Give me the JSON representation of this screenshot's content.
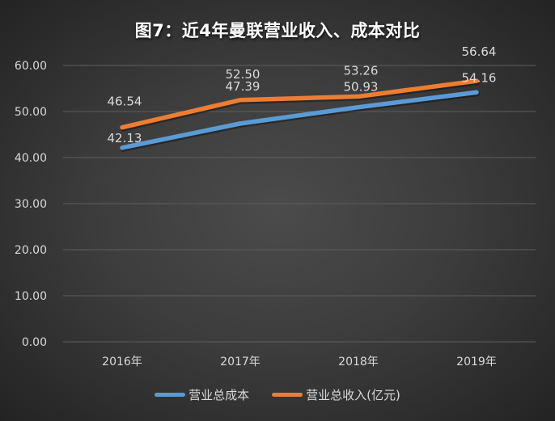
{
  "title": "图7：近4年曼联营业收入、成本对比",
  "chart_data": {
    "type": "line",
    "title": "图7：近4年曼联营业收入、成本对比",
    "categories": [
      "2016年",
      "2017年",
      "2018年",
      "2019年"
    ],
    "series": [
      {
        "name": "营业总成本",
        "color": "#5B9BD5",
        "values": [
          42.13,
          47.39,
          50.93,
          54.16
        ]
      },
      {
        "name": "营业总收入(亿元)",
        "color": "#ED7D31",
        "values": [
          46.54,
          52.5,
          53.26,
          56.64
        ]
      }
    ],
    "xlabel": "",
    "ylabel": "",
    "ylim": [
      0,
      60
    ],
    "yticks": [
      "0.00",
      "10.00",
      "20.00",
      "30.00",
      "40.00",
      "50.00",
      "60.00"
    ],
    "grid": true,
    "legend_position": "bottom",
    "data_labels": true
  },
  "legend": [
    {
      "label": "营业总成本",
      "color": "#5B9BD5"
    },
    {
      "label": "营业总收入(亿元)",
      "color": "#ED7D31"
    }
  ]
}
